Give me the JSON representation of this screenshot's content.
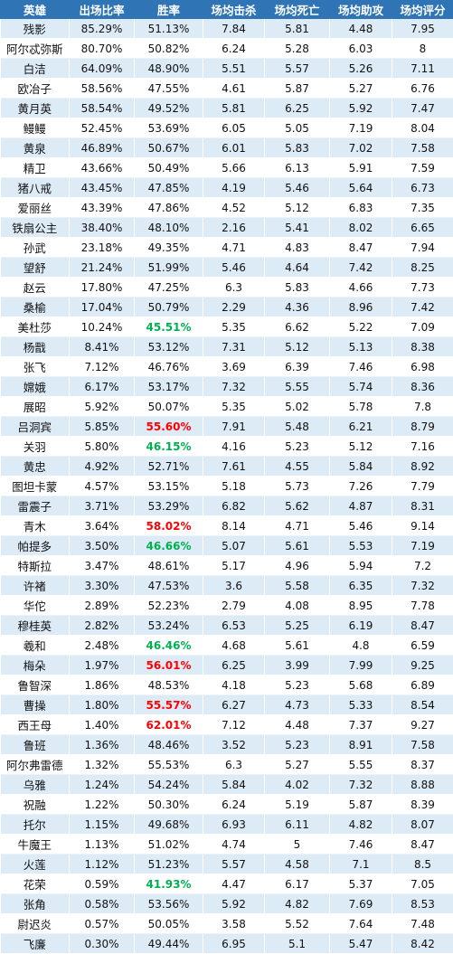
{
  "headers": [
    "英雄",
    "出场比率",
    "胜率",
    "场均击杀",
    "场均死亡",
    "场均助攻",
    "场均评分"
  ],
  "rows": [
    {
      "hero": "残影",
      "rate": "85.29%",
      "win": "51.13%",
      "kills": "7.84",
      "deaths": "5.81",
      "assists": "4.48",
      "score": "7.95"
    },
    {
      "hero": "阿尔忒弥斯",
      "rate": "80.70%",
      "win": "50.82%",
      "kills": "6.24",
      "deaths": "5.28",
      "assists": "6.03",
      "score": "8"
    },
    {
      "hero": "白洁",
      "rate": "64.09%",
      "win": "48.90%",
      "kills": "5.51",
      "deaths": "5.57",
      "assists": "5.26",
      "score": "7.11"
    },
    {
      "hero": "欧冶子",
      "rate": "58.56%",
      "win": "47.55%",
      "kills": "4.61",
      "deaths": "5.87",
      "assists": "5.27",
      "score": "6.76"
    },
    {
      "hero": "黄月英",
      "rate": "58.54%",
      "win": "49.52%",
      "kills": "5.81",
      "deaths": "6.25",
      "assists": "5.92",
      "score": "7.47"
    },
    {
      "hero": "鳗鳗",
      "rate": "52.45%",
      "win": "53.69%",
      "kills": "6.05",
      "deaths": "5.05",
      "assists": "7.19",
      "score": "8.04"
    },
    {
      "hero": "黄泉",
      "rate": "46.89%",
      "win": "50.67%",
      "kills": "6.01",
      "deaths": "5.83",
      "assists": "7.02",
      "score": "7.58"
    },
    {
      "hero": "精卫",
      "rate": "43.66%",
      "win": "50.49%",
      "kills": "5.66",
      "deaths": "6.13",
      "assists": "5.91",
      "score": "7.59"
    },
    {
      "hero": "猪八戒",
      "rate": "43.45%",
      "win": "47.85%",
      "kills": "4.19",
      "deaths": "5.46",
      "assists": "5.64",
      "score": "6.73"
    },
    {
      "hero": "爱丽丝",
      "rate": "43.39%",
      "win": "47.86%",
      "kills": "4.52",
      "deaths": "5.12",
      "assists": "6.83",
      "score": "7.35"
    },
    {
      "hero": "铁扇公主",
      "rate": "38.40%",
      "win": "48.10%",
      "kills": "2.16",
      "deaths": "5.41",
      "assists": "8.02",
      "score": "6.65"
    },
    {
      "hero": "孙武",
      "rate": "23.18%",
      "win": "49.35%",
      "kills": "4.71",
      "deaths": "4.83",
      "assists": "8.47",
      "score": "7.94"
    },
    {
      "hero": "望舒",
      "rate": "21.24%",
      "win": "51.99%",
      "kills": "5.46",
      "deaths": "4.64",
      "assists": "7.42",
      "score": "8.25"
    },
    {
      "hero": "赵云",
      "rate": "17.80%",
      "win": "47.25%",
      "kills": "6.3",
      "deaths": "5.83",
      "assists": "4.66",
      "score": "7.73"
    },
    {
      "hero": "桑榆",
      "rate": "17.04%",
      "win": "50.79%",
      "kills": "2.29",
      "deaths": "4.36",
      "assists": "8.96",
      "score": "7.42"
    },
    {
      "hero": "美杜莎",
      "rate": "10.24%",
      "win": "45.51%",
      "win_color": "green",
      "kills": "5.35",
      "deaths": "6.62",
      "assists": "5.22",
      "score": "7.09"
    },
    {
      "hero": "杨戬",
      "rate": "8.41%",
      "win": "53.12%",
      "kills": "7.31",
      "deaths": "5.12",
      "assists": "5.13",
      "score": "8.38"
    },
    {
      "hero": "张飞",
      "rate": "7.12%",
      "win": "46.76%",
      "kills": "3.69",
      "deaths": "6.39",
      "assists": "7.46",
      "score": "6.98"
    },
    {
      "hero": "嫦娥",
      "rate": "6.17%",
      "win": "53.17%",
      "kills": "7.32",
      "deaths": "5.55",
      "assists": "5.74",
      "score": "8.36"
    },
    {
      "hero": "展昭",
      "rate": "5.92%",
      "win": "50.07%",
      "kills": "5.35",
      "deaths": "5.02",
      "assists": "5.78",
      "score": "7.8"
    },
    {
      "hero": "吕洞宾",
      "rate": "5.85%",
      "win": "55.60%",
      "win_color": "red",
      "kills": "7.91",
      "deaths": "5.48",
      "assists": "6.21",
      "score": "8.79"
    },
    {
      "hero": "关羽",
      "rate": "5.80%",
      "win": "46.15%",
      "win_color": "green",
      "kills": "4.16",
      "deaths": "5.23",
      "assists": "5.12",
      "score": "7.16"
    },
    {
      "hero": "黄忠",
      "rate": "4.92%",
      "win": "52.71%",
      "kills": "7.61",
      "deaths": "4.55",
      "assists": "5.84",
      "score": "8.92"
    },
    {
      "hero": "图坦卡蒙",
      "rate": "4.57%",
      "win": "53.15%",
      "kills": "5.18",
      "deaths": "5.73",
      "assists": "7.26",
      "score": "7.79"
    },
    {
      "hero": "雷震子",
      "rate": "3.71%",
      "win": "53.29%",
      "kills": "6.82",
      "deaths": "5.62",
      "assists": "4.87",
      "score": "8.31"
    },
    {
      "hero": "青木",
      "rate": "3.64%",
      "win": "58.02%",
      "win_color": "red",
      "kills": "8.14",
      "deaths": "4.71",
      "assists": "5.46",
      "score": "9.14"
    },
    {
      "hero": "帕提多",
      "rate": "3.50%",
      "win": "46.66%",
      "win_color": "green",
      "kills": "5.07",
      "deaths": "5.61",
      "assists": "5.53",
      "score": "7.19"
    },
    {
      "hero": "特斯拉",
      "rate": "3.47%",
      "win": "48.61%",
      "kills": "5.17",
      "deaths": "4.96",
      "assists": "5.94",
      "score": "7.2"
    },
    {
      "hero": "许褚",
      "rate": "3.30%",
      "win": "47.53%",
      "kills": "3.6",
      "deaths": "5.58",
      "assists": "6.35",
      "score": "7.32"
    },
    {
      "hero": "华佗",
      "rate": "2.89%",
      "win": "52.23%",
      "kills": "2.79",
      "deaths": "4.08",
      "assists": "8.95",
      "score": "7.78"
    },
    {
      "hero": "穆桂英",
      "rate": "2.82%",
      "win": "53.24%",
      "kills": "6.53",
      "deaths": "5.25",
      "assists": "6.19",
      "score": "8.47"
    },
    {
      "hero": "羲和",
      "rate": "2.48%",
      "win": "46.46%",
      "win_color": "green",
      "kills": "4.68",
      "deaths": "5.61",
      "assists": "4.8",
      "score": "6.59"
    },
    {
      "hero": "梅朵",
      "rate": "1.97%",
      "win": "56.01%",
      "win_color": "red",
      "kills": "6.25",
      "deaths": "3.99",
      "assists": "7.99",
      "score": "9.25"
    },
    {
      "hero": "鲁智深",
      "rate": "1.86%",
      "win": "48.53%",
      "kills": "4.18",
      "deaths": "5.23",
      "assists": "5.68",
      "score": "6.89"
    },
    {
      "hero": "曹操",
      "rate": "1.80%",
      "win": "55.57%",
      "win_color": "red",
      "kills": "6.27",
      "deaths": "4.73",
      "assists": "5.33",
      "score": "8.54"
    },
    {
      "hero": "西王母",
      "rate": "1.40%",
      "win": "62.01%",
      "win_color": "red",
      "kills": "7.12",
      "deaths": "4.48",
      "assists": "7.37",
      "score": "9.27"
    },
    {
      "hero": "鲁班",
      "rate": "1.36%",
      "win": "48.46%",
      "kills": "3.52",
      "deaths": "5.23",
      "assists": "8.91",
      "score": "7.58"
    },
    {
      "hero": "阿尔弗雷德",
      "rate": "1.32%",
      "win": "55.53%",
      "kills": "6.3",
      "deaths": "5.27",
      "assists": "5.55",
      "score": "8.37"
    },
    {
      "hero": "乌雅",
      "rate": "1.24%",
      "win": "54.24%",
      "kills": "5.84",
      "deaths": "4.02",
      "assists": "7.32",
      "score": "8.88"
    },
    {
      "hero": "祝融",
      "rate": "1.22%",
      "win": "50.30%",
      "kills": "6.24",
      "deaths": "5.19",
      "assists": "5.87",
      "score": "8.39"
    },
    {
      "hero": "托尔",
      "rate": "1.15%",
      "win": "49.68%",
      "kills": "6.93",
      "deaths": "6.11",
      "assists": "4.82",
      "score": "8.07"
    },
    {
      "hero": "牛魔王",
      "rate": "1.13%",
      "win": "51.02%",
      "kills": "4.74",
      "deaths": "5",
      "assists": "7.46",
      "score": "8.47"
    },
    {
      "hero": "火莲",
      "rate": "1.12%",
      "win": "51.23%",
      "kills": "5.57",
      "deaths": "4.58",
      "assists": "7.1",
      "score": "8.5"
    },
    {
      "hero": "花荣",
      "rate": "0.59%",
      "win": "41.93%",
      "win_color": "green",
      "kills": "4.47",
      "deaths": "6.17",
      "assists": "5.37",
      "score": "7.05"
    },
    {
      "hero": "张角",
      "rate": "0.58%",
      "win": "53.56%",
      "kills": "5.92",
      "deaths": "4.82",
      "assists": "7.69",
      "score": "8.53"
    },
    {
      "hero": "尉迟炎",
      "rate": "0.57%",
      "win": "50.05%",
      "kills": "3.58",
      "deaths": "5.52",
      "assists": "7.64",
      "score": "7.48"
    },
    {
      "hero": "飞廉",
      "rate": "0.30%",
      "win": "49.44%",
      "kills": "6.95",
      "deaths": "5.1",
      "assists": "5.47",
      "score": "8.42"
    }
  ],
  "colors": {
    "header_bg": "#2f75b5",
    "stripe": "#ddebf7",
    "red": "#ff0000",
    "green": "#00b050"
  }
}
